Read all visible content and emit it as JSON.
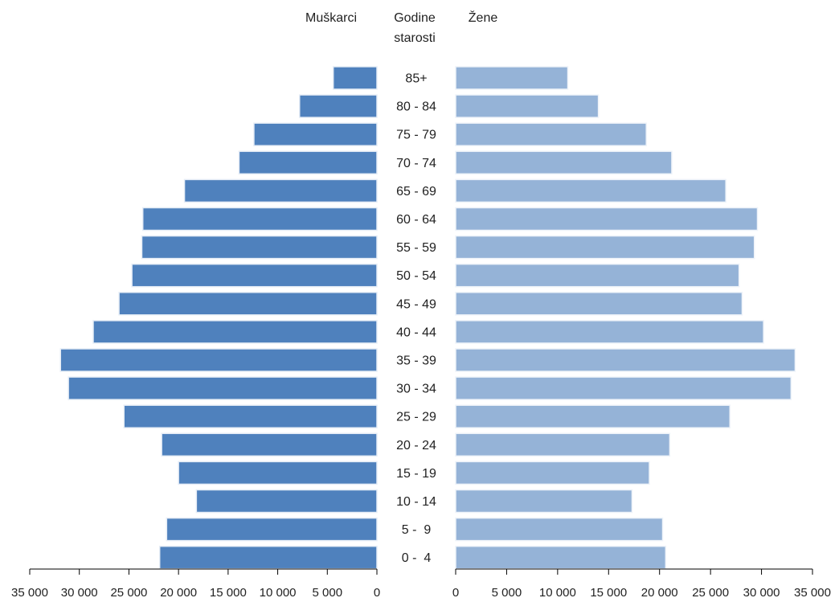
{
  "chart_data": {
    "type": "bar",
    "chart_kind": "population-pyramid",
    "header": {
      "left": "Muškarci",
      "center_line1": "Godine",
      "center_line2": "starosti",
      "right": "Žene"
    },
    "categories": [
      "85+",
      "80 - 84",
      "75 - 79",
      "70 - 74",
      "65 - 69",
      "60 - 64",
      "55 - 59",
      "50 - 54",
      "45 - 49",
      "40 - 44",
      "35 - 39",
      "30 - 34",
      "25 - 29",
      "20 - 24",
      "15 - 19",
      "10 - 14",
      "5 -  9",
      "0 -  4"
    ],
    "series": [
      {
        "name": "Muškarci",
        "color": "#4f81bd",
        "values": [
          4400,
          7800,
          12400,
          13900,
          19400,
          23600,
          23700,
          24700,
          26000,
          28600,
          31900,
          31100,
          25500,
          21700,
          20000,
          18200,
          21200,
          21900
        ]
      },
      {
        "name": "Žene",
        "color": "#95b3d7",
        "values": [
          11000,
          14000,
          18700,
          21200,
          26500,
          29600,
          29300,
          27800,
          28100,
          30200,
          33300,
          32900,
          26900,
          21000,
          19000,
          17300,
          20300,
          20600
        ]
      }
    ],
    "xlim": [
      0,
      35000
    ],
    "left_ticks": [
      "35 000",
      "30 000",
      "25 000",
      "20 000",
      "15 000",
      "10 000",
      "5 000",
      "0"
    ],
    "right_ticks": [
      "0",
      "5 000",
      "10 000",
      "15 000",
      "20 000",
      "25 000",
      "30 000",
      "35 000"
    ],
    "tick_values": [
      35000,
      30000,
      25000,
      20000,
      15000,
      10000,
      5000,
      0
    ],
    "grid": false,
    "legend": "none"
  }
}
